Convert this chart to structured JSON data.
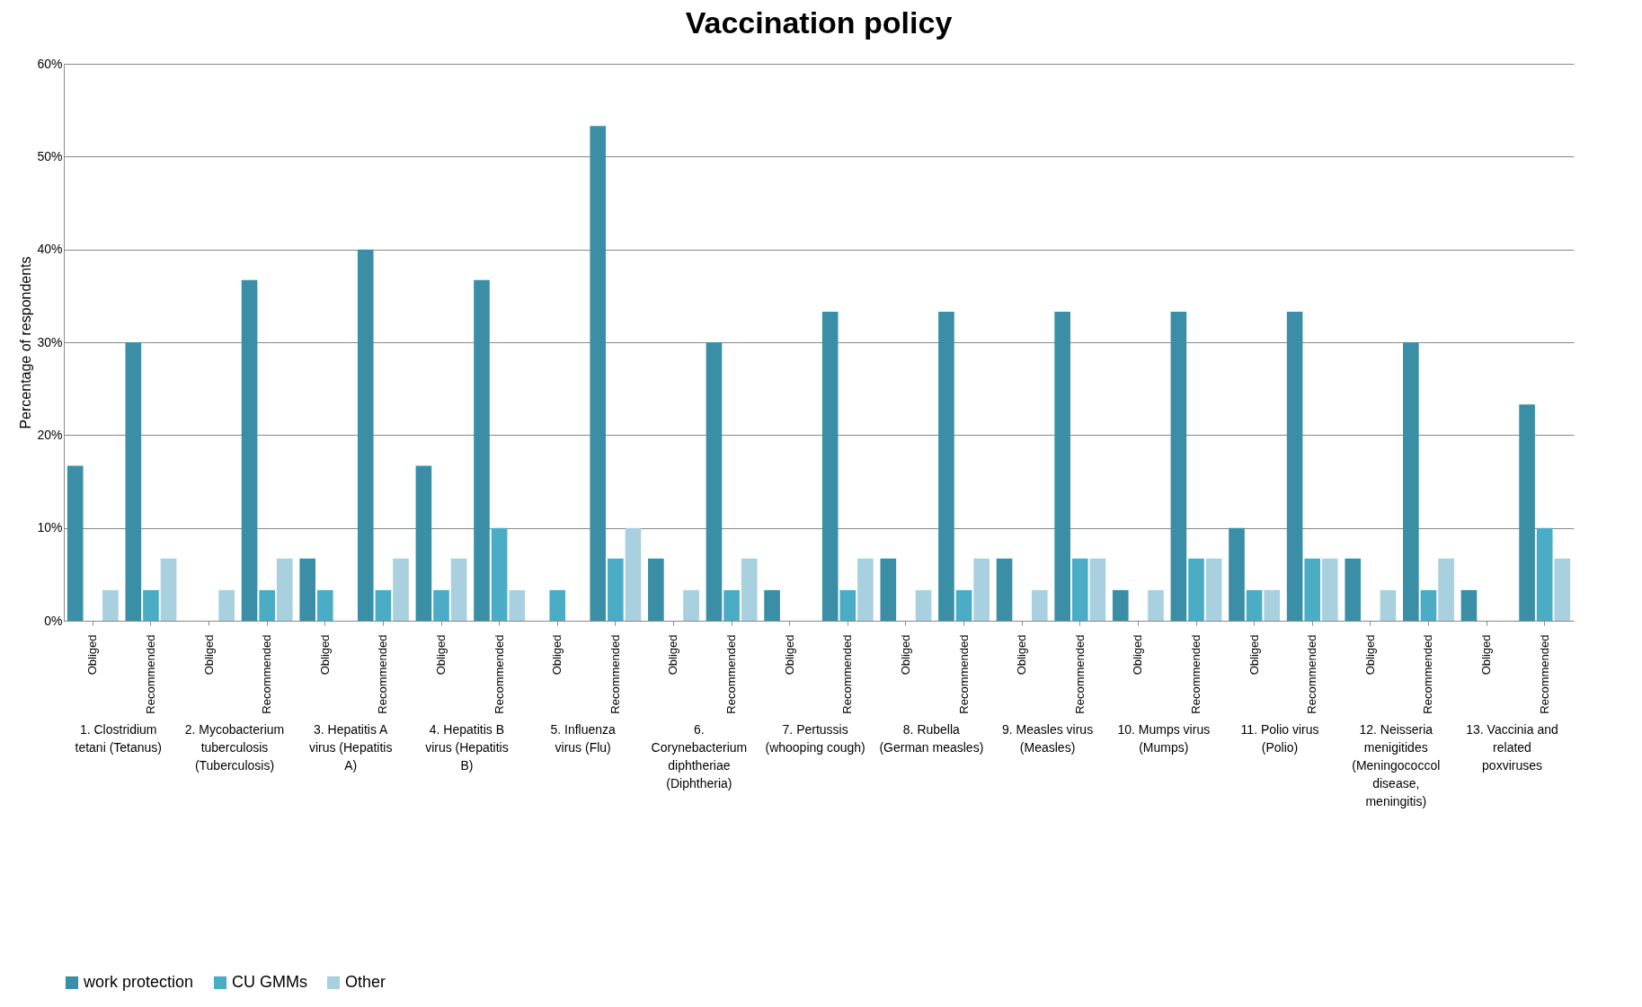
{
  "chart_data": {
    "type": "bar",
    "title": "Vaccination policy",
    "ylabel": "Percentage of respondents",
    "categories": [
      "Obliged",
      "Recommended",
      "Obliged",
      "Recommended",
      "Obliged",
      "Recommended",
      "Obliged",
      "Recommended",
      "Obliged",
      "Recommended",
      "Obliged",
      "Recommended",
      "Obliged",
      "Recommended",
      "Obliged",
      "Recommended",
      "Obliged",
      "Recommended",
      "Obliged",
      "Recommended",
      "Obliged",
      "Recommended",
      "Obliged",
      "Recommended",
      "Obliged",
      "Recommended"
    ],
    "annotations": [
      "1. Clostridium tetani (Tetanus)",
      "2. Mycobacterium tuberculosis (Tuberculosis)",
      "3. Hepatitis A virus (Hepatitis A)",
      "4. Hepatitis B virus (Hepatitis B)",
      "5. Influenza virus (Flu)",
      "6. Corynebacterium diphtheriae (Diphtheria)",
      "7. Pertussis (whooping cough)",
      "8. Rubella (German measles)",
      "9. Measles virus (Measles)",
      "10. Mumps virus (Mumps)",
      "11. Polio virus (Polio)",
      "12. Neisseria menigitides (Meningococcol disease, meningitis)",
      "13. Vaccinia and related poxviruses"
    ],
    "series": [
      {
        "name": "work protection",
        "color": "#3a8fa6",
        "values": [
          16.7,
          30,
          0,
          36.7,
          6.7,
          40,
          16.7,
          36.7,
          0,
          53.3,
          6.7,
          30,
          3.3,
          33.3,
          6.7,
          33.3,
          6.7,
          33.3,
          3.3,
          33.3,
          10,
          33.3,
          6.7,
          30,
          3.3,
          23.3
        ]
      },
      {
        "name": "CU GMMs",
        "color": "#4bacc6",
        "values": [
          0,
          3.3,
          0,
          3.3,
          3.3,
          3.3,
          3.3,
          10,
          3.3,
          6.7,
          0,
          3.3,
          0,
          3.3,
          0,
          3.3,
          0,
          6.7,
          0,
          6.7,
          3.3,
          6.7,
          0,
          3.3,
          0,
          10
        ]
      },
      {
        "name": "Other",
        "color": "#a8d0de",
        "values": [
          3.3,
          6.7,
          3.3,
          6.7,
          0,
          6.7,
          6.7,
          3.3,
          0,
          10,
          3.3,
          6.7,
          0,
          6.7,
          3.3,
          6.7,
          3.3,
          6.7,
          3.3,
          6.7,
          3.3,
          6.7,
          3.3,
          6.7,
          0,
          6.7
        ]
      }
    ],
    "ylim": [
      0,
      60
    ],
    "yticks": [
      {
        "value": 0,
        "label": "0%"
      },
      {
        "value": 10,
        "label": "10%"
      },
      {
        "value": 20,
        "label": "20%"
      },
      {
        "value": 30,
        "label": "30%"
      },
      {
        "value": 40,
        "label": "40%"
      },
      {
        "value": 50,
        "label": "50%"
      },
      {
        "value": 60,
        "label": "60%"
      }
    ],
    "grid": "y",
    "legend": "bottom"
  }
}
